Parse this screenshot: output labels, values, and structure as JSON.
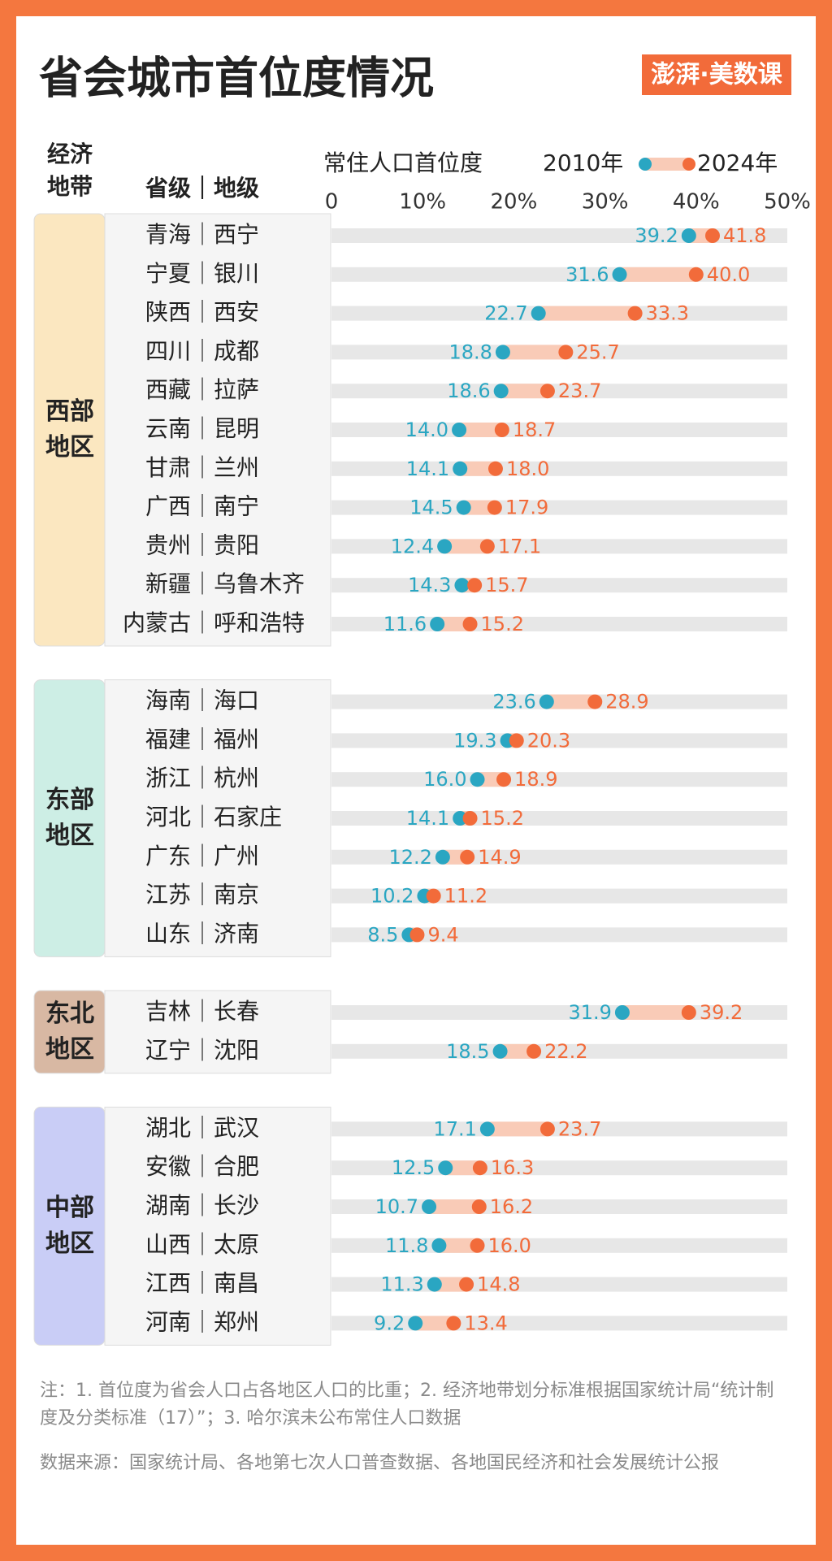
{
  "chart_data": {
    "type": "dumbbell",
    "title": "省会城市首位度情况",
    "logo": "澎湃·美数课",
    "header_zone": "经济地带",
    "header_name": "省级｜地级",
    "axis_label": "常住人口首位度",
    "xlim": [
      0,
      50
    ],
    "xticks": [
      0,
      {
        "value": 10,
        "label": "10%"
      },
      {
        "value": 20,
        "label": "20%"
      },
      {
        "value": 30,
        "label": "30%"
      },
      {
        "value": 40,
        "label": "40%"
      },
      {
        "value": 50,
        "label": "50%"
      }
    ],
    "series": [
      {
        "name": "2010年",
        "color": "#2aa6c2"
      },
      {
        "name": "2024年",
        "color": "#f26b3a"
      }
    ],
    "groups": [
      {
        "name": "西部地区",
        "color": "#fbe7c0",
        "categories": [
          "青海｜西宁",
          "宁夏｜银川",
          "陕西｜西安",
          "四川｜成都",
          "西藏｜拉萨",
          "云南｜昆明",
          "甘肃｜兰州",
          "广西｜南宁",
          "贵州｜贵阳",
          "新疆｜乌鲁木齐",
          "内蒙古｜呼和浩特"
        ],
        "values": [
          [
            39.2,
            41.8
          ],
          [
            31.6,
            40.0
          ],
          [
            22.7,
            33.3
          ],
          [
            18.8,
            25.7
          ],
          [
            18.6,
            23.7
          ],
          [
            14.0,
            18.7
          ],
          [
            14.1,
            18.0
          ],
          [
            14.5,
            17.9
          ],
          [
            12.4,
            17.1
          ],
          [
            14.3,
            15.7
          ],
          [
            11.6,
            15.2
          ]
        ],
        "value_labels": [
          [
            "39.2",
            "41.8"
          ],
          [
            "31.6",
            "40.0"
          ],
          [
            "22.7",
            "33.3"
          ],
          [
            "18.8",
            "25.7"
          ],
          [
            "18.6",
            "23.7"
          ],
          [
            "14.0",
            "18.7"
          ],
          [
            "14.1",
            "18.0"
          ],
          [
            "14.5",
            "17.9"
          ],
          [
            "12.4",
            "17.1"
          ],
          [
            "14.3",
            "15.7"
          ],
          [
            "11.6",
            "15.2"
          ]
        ]
      },
      {
        "name": "东部地区",
        "color": "#cdeee5",
        "categories": [
          "海南｜海口",
          "福建｜福州",
          "浙江｜杭州",
          "河北｜石家庄",
          "广东｜广州",
          "江苏｜南京",
          "山东｜济南"
        ],
        "values": [
          [
            23.6,
            28.9
          ],
          [
            19.3,
            20.3
          ],
          [
            16.0,
            18.9
          ],
          [
            14.1,
            15.2
          ],
          [
            12.2,
            14.9
          ],
          [
            10.2,
            11.2
          ],
          [
            8.5,
            9.4
          ]
        ],
        "value_labels": [
          [
            "23.6",
            "28.9"
          ],
          [
            "19.3",
            "20.3"
          ],
          [
            "16.0",
            "18.9"
          ],
          [
            "14.1",
            "15.2"
          ],
          [
            "12.2",
            "14.9"
          ],
          [
            "10.2",
            "11.2"
          ],
          [
            "8.5",
            "9.4"
          ]
        ]
      },
      {
        "name": "东北地区",
        "color": "#d8b8a3",
        "categories": [
          "吉林｜长春",
          "辽宁｜沈阳"
        ],
        "values": [
          [
            31.9,
            39.2
          ],
          [
            18.5,
            22.2
          ]
        ],
        "value_labels": [
          [
            "31.9",
            "39.2"
          ],
          [
            "18.5",
            "22.2"
          ]
        ]
      },
      {
        "name": "中部地区",
        "color": "#c9cdf6",
        "categories": [
          "湖北｜武汉",
          "安徽｜合肥",
          "湖南｜长沙",
          "山西｜太原",
          "江西｜南昌",
          "河南｜郑州"
        ],
        "values": [
          [
            17.1,
            23.7
          ],
          [
            12.5,
            16.3
          ],
          [
            10.7,
            16.2
          ],
          [
            11.8,
            16.0
          ],
          [
            11.3,
            14.8
          ],
          [
            9.2,
            13.4
          ]
        ],
        "value_labels": [
          [
            "17.1",
            "23.7"
          ],
          [
            "12.5",
            "16.3"
          ],
          [
            "10.7",
            "16.2"
          ],
          [
            "11.8",
            "16.0"
          ],
          [
            "11.3",
            "14.8"
          ],
          [
            "9.2",
            "13.4"
          ]
        ]
      }
    ],
    "note": "注：1. 首位度为省会人口占各地区人口的比重；2. 经济地带划分标准根据国家统计局“统计制度及分类标准（17）”；3. 哈尔滨未公布常住人口数据",
    "source": "数据来源：国家统计局、各地第七次人口普查数据、各地国民经济和社会发展统计公报"
  }
}
